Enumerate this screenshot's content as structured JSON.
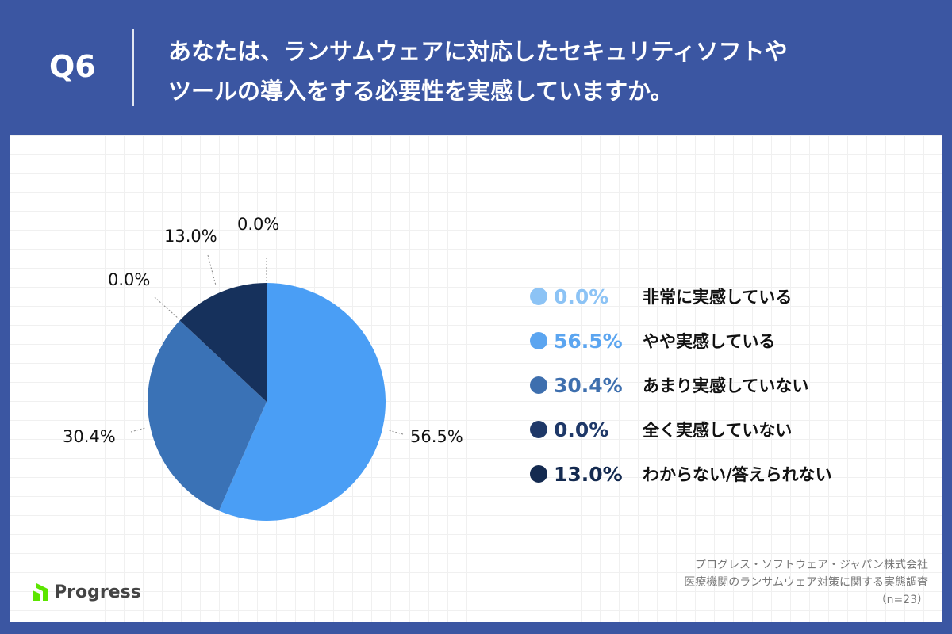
{
  "header": {
    "q": "Q6",
    "title_line1": "あなたは、ランサムウェアに対応したセキュリティソフトや",
    "title_line2": "ツールの導入をする必要性を実感していますか。"
  },
  "chart_data": {
    "type": "pie",
    "start": "top",
    "direction": "clockwise",
    "categories": [
      "非常に実感している",
      "やや実感している",
      "あまり実感していない",
      "全く実感していない",
      "わからない/答えられない"
    ],
    "values": [
      0.0,
      56.5,
      30.4,
      0.0,
      13.0
    ],
    "labels": [
      "0.0%",
      "56.5%",
      "30.4%",
      "0.0%",
      "13.0%"
    ],
    "colors": [
      "#8cc3f5",
      "#4a9ef5",
      "#3a72b6",
      "#27497e",
      "#16315c"
    ],
    "legend_colors": [
      "#8cc3f5",
      "#5ba5f0",
      "#3e6fae",
      "#1e3868",
      "#142a50"
    ],
    "legend": "right"
  },
  "source": {
    "line1": "プログレス・ソフトウェア・ジャパン株式会社",
    "line2": "医療機関のランサムウェア対策に関する実態調査",
    "line3": "（n=23）"
  },
  "logo": {
    "text": "Progress"
  }
}
